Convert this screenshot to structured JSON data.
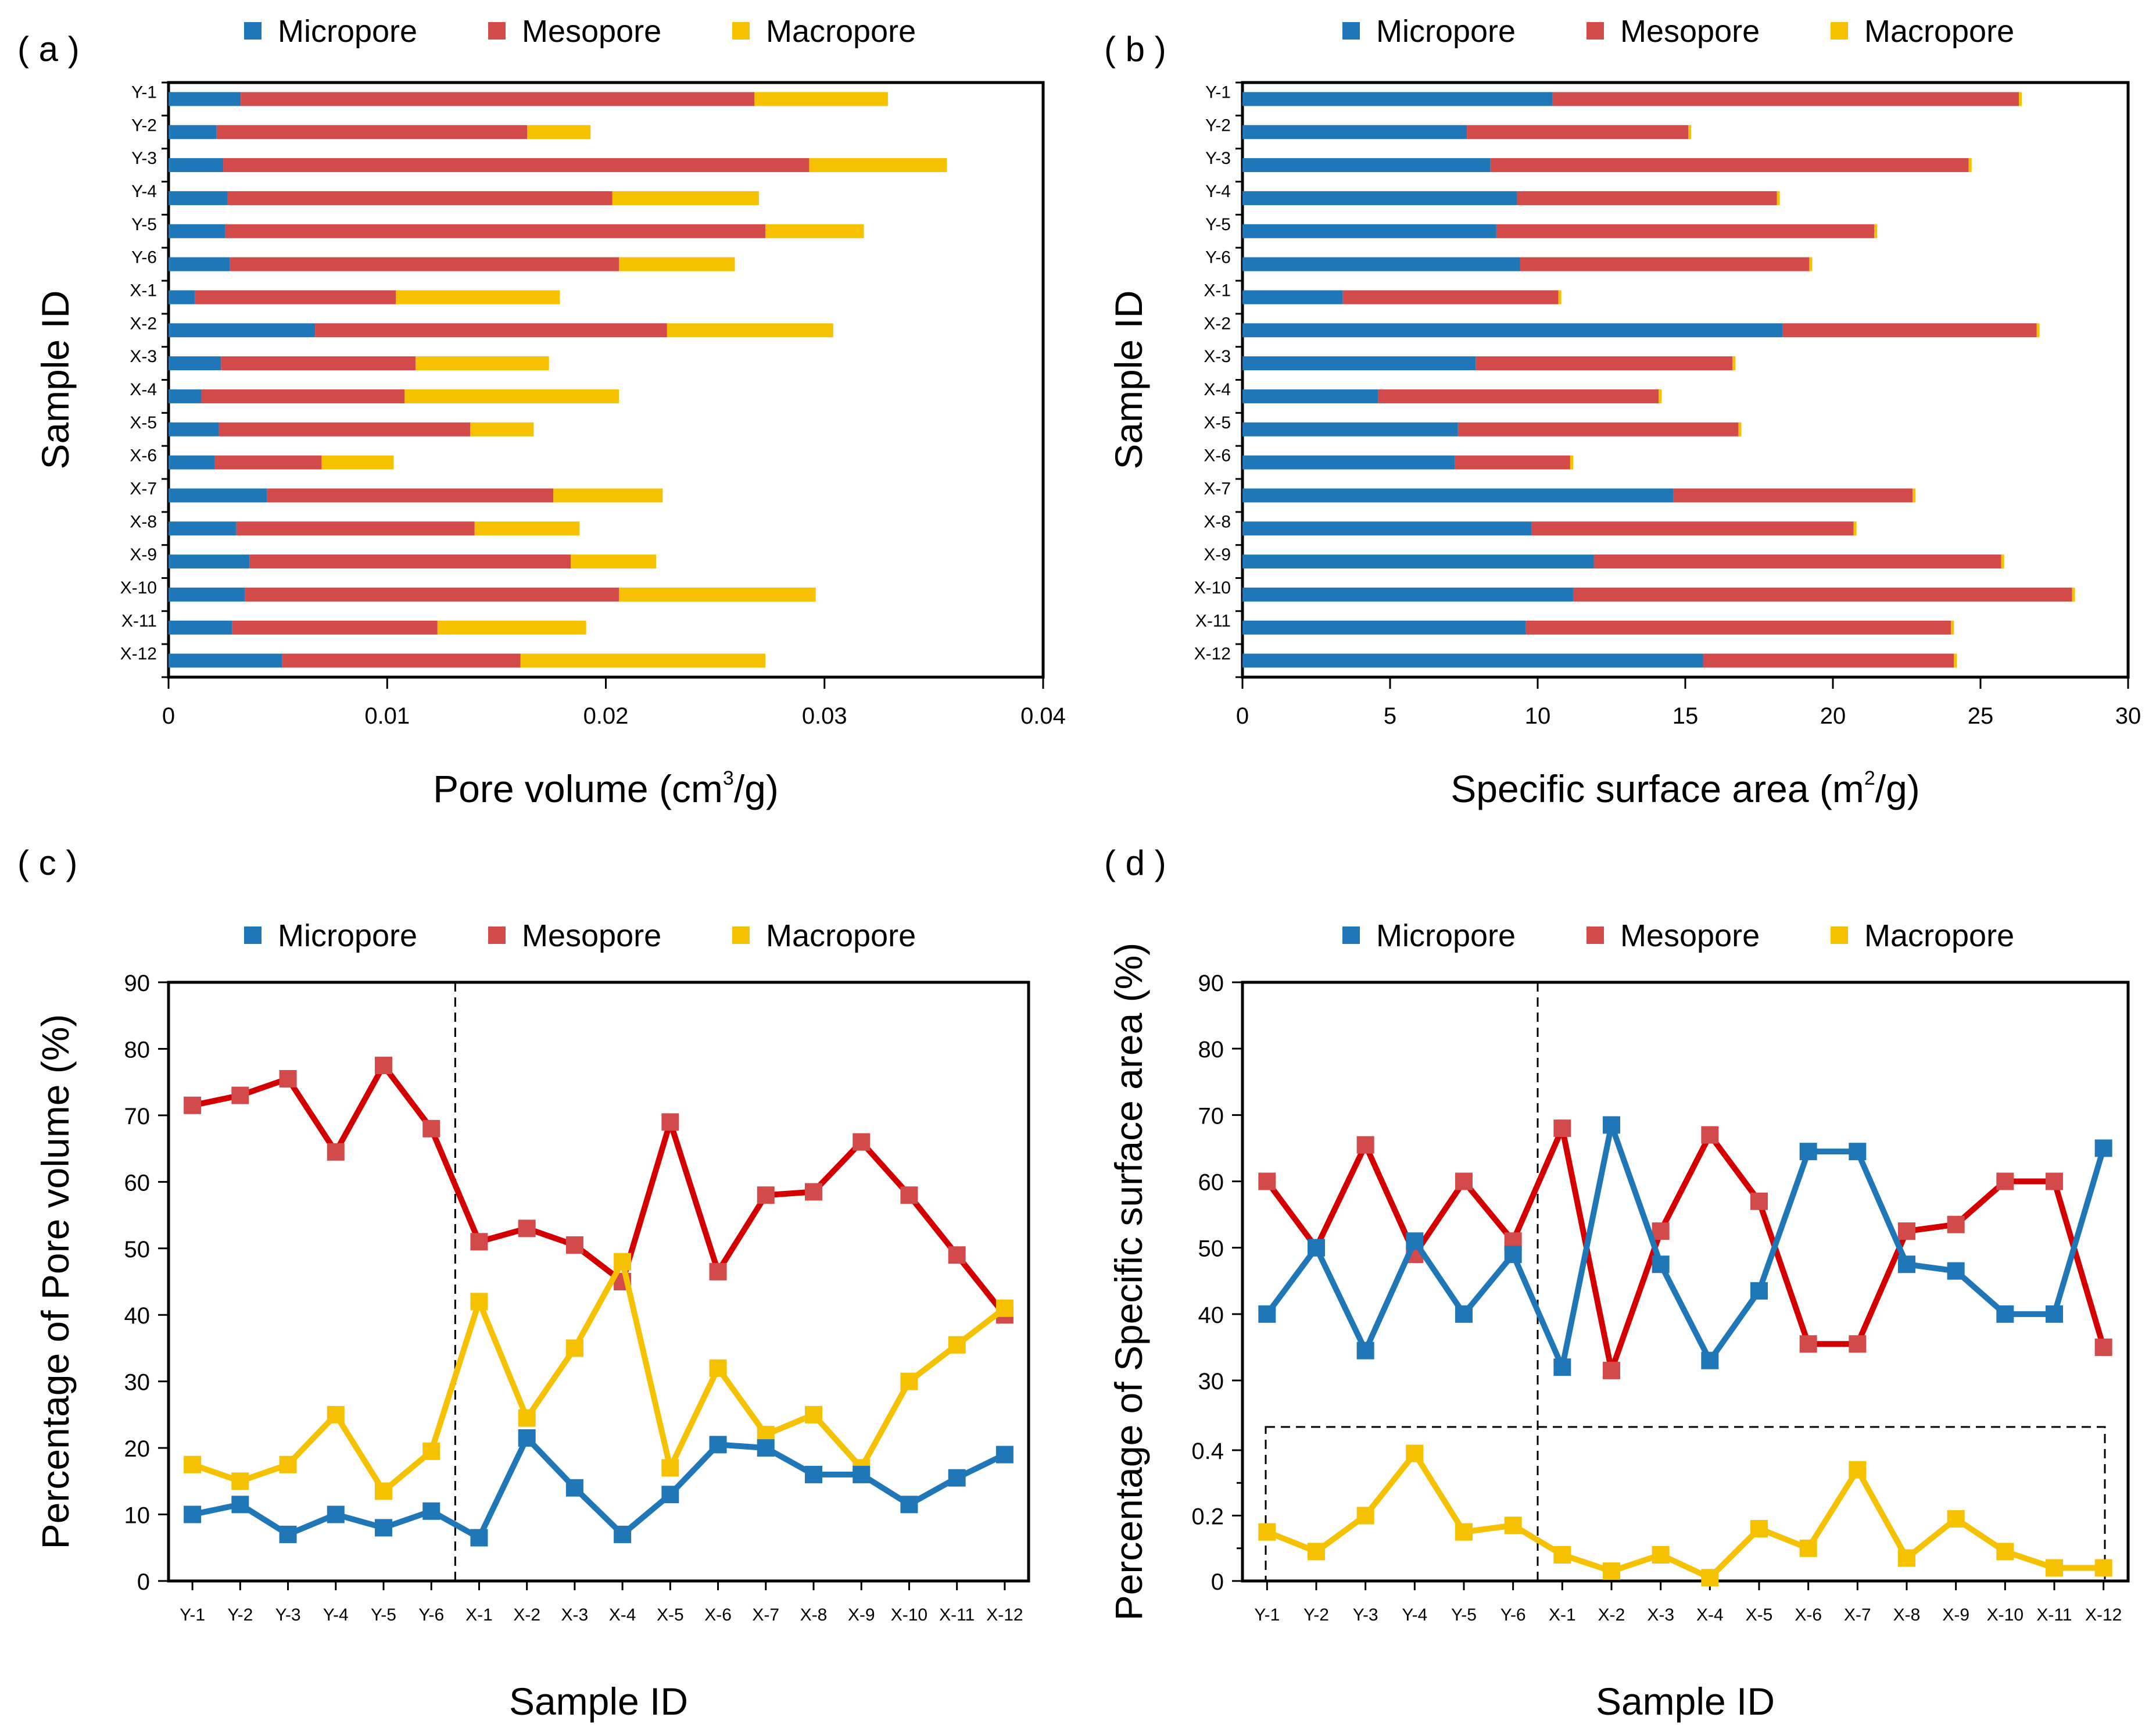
{
  "colors": {
    "micropore": "#1f77b8",
    "mesopore": "#d24a4a",
    "macropore": "#f5c100",
    "line_red": "#d40000"
  },
  "legend": [
    "Micropore",
    "Mesopore",
    "Macropore"
  ],
  "chart_data": [
    {
      "id": "a",
      "panel_label": "( a )",
      "type": "bar",
      "orientation": "horizontal",
      "stacked": true,
      "categories": [
        "Y-1",
        "Y-2",
        "Y-3",
        "Y-4",
        "Y-5",
        "Y-6",
        "X-1",
        "X-2",
        "X-3",
        "X-4",
        "X-5",
        "X-6",
        "X-7",
        "X-8",
        "X-9",
        "X-10",
        "X-11",
        "X-12"
      ],
      "series": [
        {
          "name": "Micropore",
          "values": [
            0.0033,
            0.0022,
            0.0025,
            0.0027,
            0.0026,
            0.0028,
            0.0012,
            0.0067,
            0.0024,
            0.0015,
            0.0023,
            0.0021,
            0.0045,
            0.0031,
            0.0037,
            0.0035,
            0.0029,
            0.0052
          ]
        },
        {
          "name": "Mesopore",
          "values": [
            0.0235,
            0.0142,
            0.0268,
            0.0176,
            0.0247,
            0.0178,
            0.0092,
            0.0161,
            0.0089,
            0.0093,
            0.0115,
            0.0049,
            0.0131,
            0.0109,
            0.0147,
            0.0171,
            0.0094,
            0.0109
          ]
        },
        {
          "name": "Macropore",
          "values": [
            0.0061,
            0.0029,
            0.0063,
            0.0067,
            0.0045,
            0.0053,
            0.0075,
            0.0076,
            0.0061,
            0.0098,
            0.0029,
            0.0033,
            0.005,
            0.0048,
            0.0039,
            0.009,
            0.0068,
            0.0112
          ]
        }
      ],
      "xlabel": "Pore volume (cm",
      "xlabel_sup": "3",
      "xlabel_end": "/g)",
      "ylabel": "Sample ID",
      "xlim": [
        0,
        0.04
      ],
      "xticks": [
        "0",
        "0.01",
        "0.02",
        "0.03",
        "0.04"
      ],
      "legend": "top"
    },
    {
      "id": "b",
      "panel_label": "( b )",
      "type": "bar",
      "orientation": "horizontal",
      "stacked": true,
      "categories": [
        "Y-1",
        "Y-2",
        "Y-3",
        "Y-4",
        "Y-5",
        "Y-6",
        "X-1",
        "X-2",
        "X-3",
        "X-4",
        "X-5",
        "X-6",
        "X-7",
        "X-8",
        "X-9",
        "X-10",
        "X-11",
        "X-12"
      ],
      "series": [
        {
          "name": "Micropore",
          "values": [
            10.5,
            7.6,
            8.4,
            9.3,
            8.6,
            9.4,
            3.4,
            18.3,
            7.9,
            4.6,
            7.3,
            7.2,
            14.6,
            9.8,
            11.9,
            11.2,
            9.6,
            15.6
          ]
        },
        {
          "name": "Mesopore",
          "values": [
            15.8,
            7.5,
            16.2,
            8.8,
            12.8,
            9.8,
            7.3,
            8.6,
            8.7,
            9.5,
            9.5,
            3.9,
            8.1,
            10.9,
            13.8,
            16.9,
            14.4,
            8.5
          ]
        },
        {
          "name": "Macropore",
          "values": [
            0.1,
            0.1,
            0.1,
            0.1,
            0.1,
            0.1,
            0.1,
            0.1,
            0.1,
            0.1,
            0.1,
            0.1,
            0.1,
            0.1,
            0.1,
            0.1,
            0.1,
            0.1
          ]
        }
      ],
      "xlabel": "Specific surface area (m",
      "xlabel_sup": "2",
      "xlabel_end": "/g)",
      "ylabel": "Sample ID",
      "xlim": [
        0,
        30
      ],
      "xticks": [
        "0",
        "5",
        "10",
        "15",
        "20",
        "25",
        "30"
      ],
      "legend": "top"
    },
    {
      "id": "c",
      "panel_label": "( c )",
      "type": "line",
      "categories": [
        "Y-1",
        "Y-2",
        "Y-3",
        "Y-4",
        "Y-5",
        "Y-6",
        "X-1",
        "X-2",
        "X-3",
        "X-4",
        "X-5",
        "X-6",
        "X-7",
        "X-8",
        "X-9",
        "X-10",
        "X-11",
        "X-12"
      ],
      "series": [
        {
          "name": "Micropore",
          "values": [
            10,
            11.5,
            7,
            10,
            8,
            10.5,
            6.5,
            21.5,
            14,
            7,
            13,
            20.5,
            20,
            16,
            16,
            11.5,
            15.5,
            19
          ]
        },
        {
          "name": "Mesopore",
          "values": [
            71.5,
            73,
            75.5,
            64.5,
            77.5,
            68,
            51,
            53,
            50.5,
            45,
            69,
            46.5,
            58,
            58.5,
            66,
            58,
            49,
            40
          ]
        },
        {
          "name": "Macropore",
          "values": [
            17.5,
            15,
            17.5,
            25,
            13.5,
            19.5,
            42,
            24.5,
            35,
            48,
            17,
            32,
            22,
            25,
            17,
            30,
            35.5,
            41
          ]
        }
      ],
      "xlabel": "Sample ID",
      "ylabel": "Percentage of Pore volume (%)",
      "ylim": [
        0,
        90
      ],
      "yticks": [
        "0",
        "10",
        "20",
        "30",
        "40",
        "50",
        "60",
        "70",
        "80",
        "90"
      ],
      "divider_after": "Y-6",
      "legend": "top"
    },
    {
      "id": "d",
      "panel_label": "( d )",
      "type": "line",
      "broken_axis": true,
      "categories": [
        "Y-1",
        "Y-2",
        "Y-3",
        "Y-4",
        "Y-5",
        "Y-6",
        "X-1",
        "X-2",
        "X-3",
        "X-4",
        "X-5",
        "X-6",
        "X-7",
        "X-8",
        "X-9",
        "X-10",
        "X-11",
        "X-12"
      ],
      "series": [
        {
          "name": "Micropore",
          "axis": "upper",
          "values": [
            40,
            50,
            34.5,
            51,
            40,
            49,
            32,
            68.5,
            47.5,
            33,
            43.5,
            64.5,
            64.5,
            47.5,
            46.5,
            40,
            40,
            65
          ]
        },
        {
          "name": "Mesopore",
          "axis": "upper",
          "values": [
            60,
            50,
            65.5,
            49,
            60,
            51,
            68,
            31.5,
            52.5,
            67,
            57,
            35.5,
            35.5,
            52.5,
            53.5,
            60,
            60,
            35
          ]
        },
        {
          "name": "Macropore",
          "axis": "lower",
          "values": [
            0.15,
            0.09,
            0.2,
            0.39,
            0.15,
            0.17,
            0.08,
            0.03,
            0.08,
            0.01,
            0.16,
            0.1,
            0.34,
            0.07,
            0.19,
            0.09,
            0.04,
            0.04
          ]
        }
      ],
      "xlabel": "Sample ID",
      "ylabel": "Percentage of Specific surface area (%)",
      "ylim_upper": [
        30,
        90
      ],
      "yticks_upper": [
        "30",
        "40",
        "50",
        "60",
        "70",
        "80",
        "90"
      ],
      "ylim_lower": [
        0,
        0.4
      ],
      "yticks_lower": [
        "0",
        "0.2",
        "0.4"
      ],
      "divider_after": "Y-6",
      "legend": "top"
    }
  ]
}
